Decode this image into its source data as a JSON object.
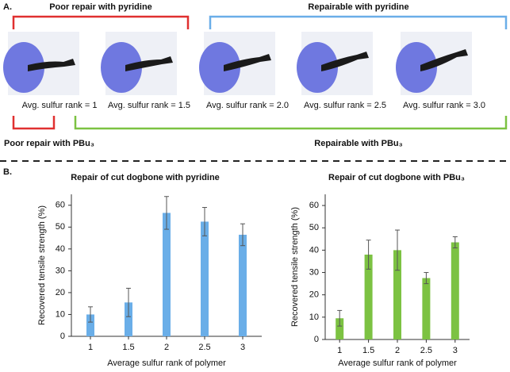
{
  "panel_labels": [
    "A.",
    "B."
  ],
  "panel_a": {
    "top_brackets": [
      "Poor repair with pyridine",
      "Repairable with pyridine"
    ],
    "captions": [
      "Avg. sulfur rank = 1",
      "Avg. sulfur rank = 1.5",
      "Avg. sulfur rank = 2.0",
      "Avg. sulfur rank = 2.5",
      "Avg. sulfur rank = 3.0"
    ],
    "bottom_brackets": [
      "Poor repair with PBu₃",
      "Repairable with PBu₃"
    ]
  },
  "chart_data": [
    {
      "type": "bar",
      "title": "Repair of cut dogbone with pyridine",
      "x_label": "Average sulfur rank of polymer",
      "y_label": "Recovered tensile strength (%)",
      "categories": [
        "1",
        "1.5",
        "2",
        "2.5",
        "3"
      ],
      "values": [
        10,
        15.5,
        56.5,
        52.5,
        46.5
      ],
      "errors": [
        3.5,
        6.5,
        7.5,
        6.5,
        5
      ],
      "color": "#6aaee8",
      "ylim": [
        0,
        65
      ],
      "yticks": [
        0,
        10,
        20,
        30,
        40,
        50,
        60
      ]
    },
    {
      "type": "bar",
      "title": "Repair of cut dogbone with PBu₃",
      "x_label": "Average sulfur rank of polymer",
      "y_label": "Recovered tensile strength (%)",
      "categories": [
        "1",
        "1.5",
        "2",
        "2.5",
        "3"
      ],
      "values": [
        9.5,
        38,
        40,
        27.5,
        43.5
      ],
      "errors": [
        3.5,
        6.5,
        9,
        2.5,
        2.5
      ],
      "color": "#7cc242",
      "ylim": [
        0,
        65
      ],
      "yticks": [
        0,
        10,
        20,
        30,
        40,
        50,
        60
      ]
    }
  ]
}
